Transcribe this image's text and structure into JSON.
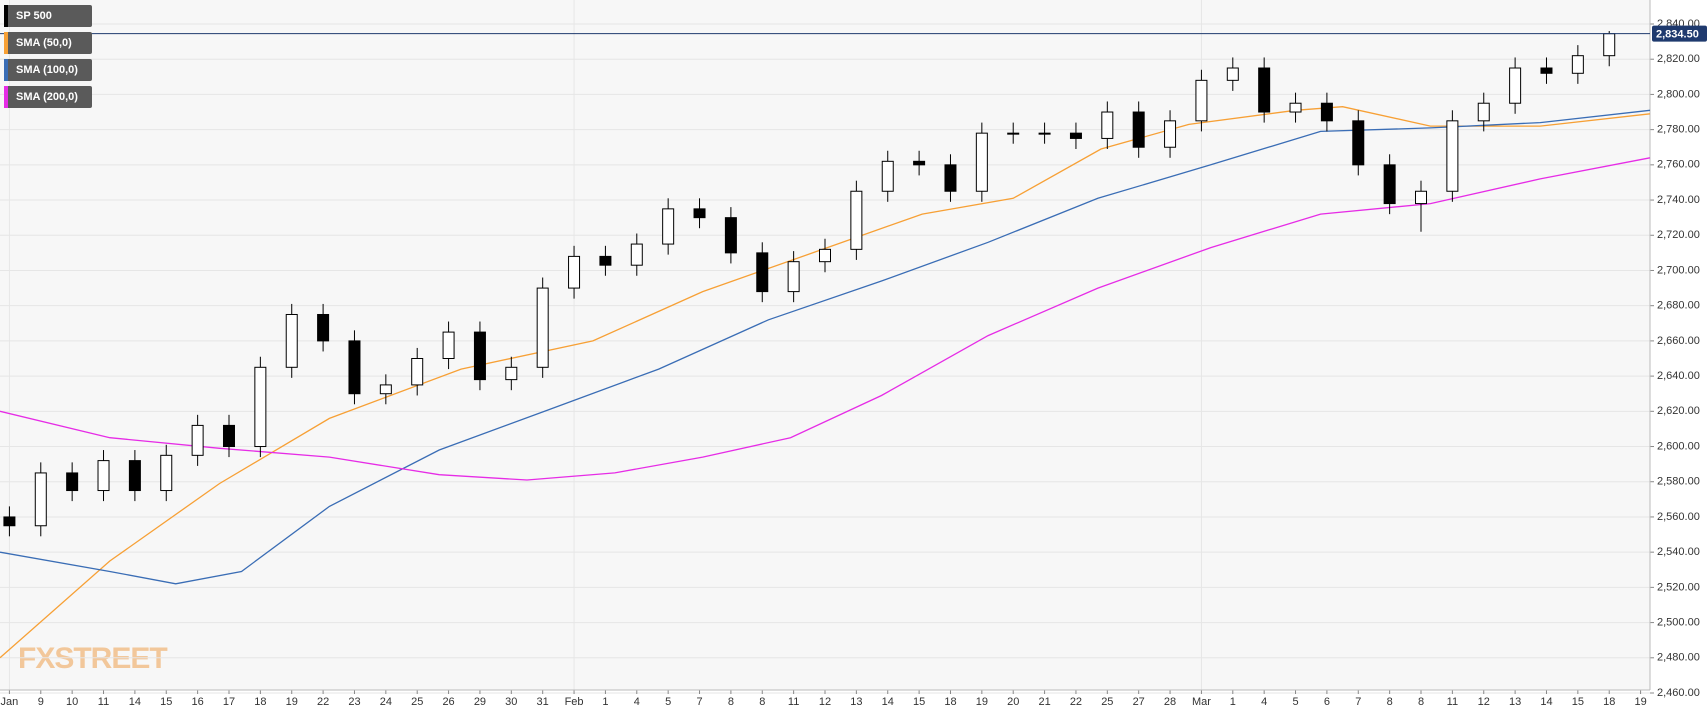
{
  "chart_data": {
    "type": "candlestick",
    "watermark": "FXSTREET",
    "xlim": [
      -0.3,
      52.3
    ],
    "xticks": [
      {
        "value": 0,
        "label": "Jan"
      },
      {
        "value": 1,
        "label": "9"
      },
      {
        "value": 2,
        "label": "10"
      },
      {
        "value": 3,
        "label": "11"
      },
      {
        "value": 4,
        "label": "14"
      },
      {
        "value": 5,
        "label": "15"
      },
      {
        "value": 6,
        "label": "16"
      },
      {
        "value": 7,
        "label": "17"
      },
      {
        "value": 8,
        "label": "18"
      },
      {
        "value": 9,
        "label": "19"
      },
      {
        "value": 10,
        "label": "22"
      },
      {
        "value": 11,
        "label": "23"
      },
      {
        "value": 12,
        "label": "24"
      },
      {
        "value": 13,
        "label": "25"
      },
      {
        "value": 14,
        "label": "26"
      },
      {
        "value": 15,
        "label": "29"
      },
      {
        "value": 16,
        "label": "30"
      },
      {
        "value": 17,
        "label": "31"
      },
      {
        "value": 18,
        "label": "Feb"
      },
      {
        "value": 19,
        "label": "1"
      },
      {
        "value": 20,
        "label": "4"
      },
      {
        "value": 21,
        "label": "5"
      },
      {
        "value": 22,
        "label": "7"
      },
      {
        "value": 23,
        "label": "8"
      },
      {
        "value": 24,
        "label": "8"
      },
      {
        "value": 25,
        "label": "11"
      },
      {
        "value": 26,
        "label": "12"
      },
      {
        "value": 27,
        "label": "13"
      },
      {
        "value": 28,
        "label": "14"
      },
      {
        "value": 29,
        "label": "15"
      },
      {
        "value": 30,
        "label": "18"
      },
      {
        "value": 31,
        "label": "19"
      },
      {
        "value": 32,
        "label": "20"
      },
      {
        "value": 33,
        "label": "21"
      },
      {
        "value": 34,
        "label": "22"
      },
      {
        "value": 35,
        "label": "25"
      },
      {
        "value": 36,
        "label": "27"
      },
      {
        "value": 37,
        "label": "28"
      },
      {
        "value": 38,
        "label": "Mar"
      },
      {
        "value": 39,
        "label": "1"
      },
      {
        "value": 40,
        "label": "4"
      },
      {
        "value": 41,
        "label": "5"
      },
      {
        "value": 42,
        "label": "6"
      },
      {
        "value": 43,
        "label": "7"
      },
      {
        "value": 44,
        "label": "8"
      },
      {
        "value": 45,
        "label": "8"
      },
      {
        "value": 46,
        "label": "11"
      },
      {
        "value": 47,
        "label": "12"
      },
      {
        "value": 48,
        "label": "13"
      },
      {
        "value": 49,
        "label": "14"
      },
      {
        "value": 50,
        "label": "15"
      },
      {
        "value": 51,
        "label": "18"
      },
      {
        "value": 52,
        "label": "19"
      }
    ],
    "ylim": [
      2460,
      2840
    ],
    "yticks": [
      {
        "value": 2460,
        "label": "2,460.00"
      },
      {
        "value": 2480,
        "label": "2,480.00"
      },
      {
        "value": 2500,
        "label": "2,500.00"
      },
      {
        "value": 2520,
        "label": "2,520.00"
      },
      {
        "value": 2540,
        "label": "2,540.00"
      },
      {
        "value": 2560,
        "label": "2,560.00"
      },
      {
        "value": 2580,
        "label": "2,580.00"
      },
      {
        "value": 2600,
        "label": "2,600.00"
      },
      {
        "value": 2620,
        "label": "2,620.00"
      },
      {
        "value": 2640,
        "label": "2,640.00"
      },
      {
        "value": 2660,
        "label": "2,660.00"
      },
      {
        "value": 2680,
        "label": "2,680.00"
      },
      {
        "value": 2700,
        "label": "2,700.00"
      },
      {
        "value": 2720,
        "label": "2,720.00"
      },
      {
        "value": 2740,
        "label": "2,740.00"
      },
      {
        "value": 2760,
        "label": "2,760.00"
      },
      {
        "value": 2780,
        "label": "2,780.00"
      },
      {
        "value": 2800,
        "label": "2,800.00"
      },
      {
        "value": 2820,
        "label": "2,820.00"
      },
      {
        "value": 2840,
        "label": "2,840.00"
      }
    ],
    "grid": true,
    "last_price": {
      "value": 2834.5,
      "label": "2,834.50"
    },
    "candles": {
      "name": "SP 500",
      "color": "#000000",
      "x": [
        0,
        1,
        2,
        3,
        4,
        5,
        6,
        7,
        8,
        9,
        10,
        11,
        12,
        13,
        14,
        15,
        16,
        17,
        18,
        19,
        20,
        21,
        22,
        23,
        24,
        25,
        26,
        27,
        28,
        29,
        30,
        31,
        32,
        33,
        34,
        35,
        36,
        37,
        38,
        39,
        40,
        41,
        42,
        43,
        44,
        45,
        46,
        47,
        48,
        49,
        50,
        51
      ],
      "open": [
        2560,
        2555,
        2585,
        2575,
        2592,
        2575,
        2595,
        2612,
        2600,
        2645,
        2675,
        2660,
        2630,
        2635,
        2650,
        2665,
        2638,
        2645,
        2690,
        2708,
        2703,
        2715,
        2735,
        2730,
        2710,
        2688,
        2705,
        2712,
        2745,
        2762,
        2760,
        2745,
        2778,
        2778,
        2778,
        2775,
        2790,
        2770,
        2785,
        2808,
        2815,
        2790,
        2795,
        2785,
        2760,
        2738,
        2745,
        2785,
        2795,
        2815,
        2812,
        2822
      ],
      "high": [
        2566,
        2591,
        2591,
        2598,
        2598,
        2601,
        2618,
        2618,
        2651,
        2681,
        2681,
        2666,
        2641,
        2656,
        2671,
        2671,
        2651,
        2696,
        2714,
        2714,
        2721,
        2741,
        2741,
        2736,
        2716,
        2711,
        2718,
        2751,
        2768,
        2768,
        2766,
        2784,
        2784,
        2784,
        2784,
        2796,
        2796,
        2791,
        2814,
        2821,
        2821,
        2801,
        2801,
        2791,
        2766,
        2751,
        2791,
        2801,
        2821,
        2821,
        2828,
        2836
      ],
      "low": [
        2549,
        2549,
        2569,
        2569,
        2569,
        2569,
        2589,
        2594,
        2594,
        2639,
        2654,
        2624,
        2624,
        2629,
        2644,
        2632,
        2632,
        2639,
        2684,
        2697,
        2697,
        2709,
        2724,
        2704,
        2682,
        2682,
        2699,
        2706,
        2739,
        2754,
        2739,
        2739,
        2772,
        2772,
        2769,
        2769,
        2764,
        2764,
        2779,
        2802,
        2784,
        2784,
        2779,
        2754,
        2732,
        2722,
        2739,
        2779,
        2789,
        2806,
        2806,
        2816
      ],
      "close": [
        2555,
        2585,
        2575,
        2592,
        2575,
        2595,
        2612,
        2600,
        2645,
        2675,
        2660,
        2630,
        2635,
        2650,
        2665,
        2638,
        2645,
        2690,
        2708,
        2703,
        2715,
        2735,
        2730,
        2710,
        2688,
        2705,
        2712,
        2745,
        2762,
        2760,
        2745,
        2778,
        2778,
        2778,
        2775,
        2790,
        2770,
        2785,
        2808,
        2815,
        2790,
        2795,
        2785,
        2760,
        2738,
        2745,
        2785,
        2795,
        2815,
        2812,
        2822,
        2834.5
      ]
    },
    "series": [
      {
        "name": "SMA (50,0)",
        "color": "#f7a035",
        "x": [
          -0.3,
          3.2,
          6.7,
          10.2,
          14.4,
          18.6,
          22.1,
          25.6,
          29.1,
          32,
          34.8,
          37.6,
          41,
          42.5,
          45.3,
          48.8,
          52.3
        ],
        "values": [
          2480,
          2535,
          2579,
          2616,
          2644,
          2660,
          2688,
          2710,
          2732,
          2741,
          2769,
          2783,
          2791,
          2793,
          2782,
          2782,
          2789
        ]
      },
      {
        "name": "SMA (100,0)",
        "color": "#3a6db5",
        "x": [
          -0.3,
          3.2,
          5.3,
          7.4,
          10.2,
          13.7,
          17.2,
          20.7,
          24.2,
          27.8,
          31.2,
          34.7,
          38.3,
          41.8,
          45.3,
          48.8,
          52.3
        ],
        "values": [
          2540,
          2529,
          2522,
          2529,
          2566,
          2598,
          2621,
          2644,
          2672,
          2694,
          2716,
          2741,
          2760,
          2779,
          2781,
          2784,
          2791
        ]
      },
      {
        "name": "SMA (200,0)",
        "color": "#e62ce6",
        "x": [
          -0.3,
          3.2,
          6.7,
          10.2,
          13.7,
          16.5,
          19.3,
          22.1,
          24.9,
          27.8,
          31.2,
          34.7,
          38.3,
          41.8,
          45.3,
          48.8,
          52.3
        ],
        "values": [
          2620,
          2605,
          2599,
          2594,
          2584,
          2581,
          2585,
          2594,
          2605,
          2629,
          2663,
          2690,
          2713,
          2732,
          2738,
          2752,
          2764
        ]
      }
    ]
  }
}
